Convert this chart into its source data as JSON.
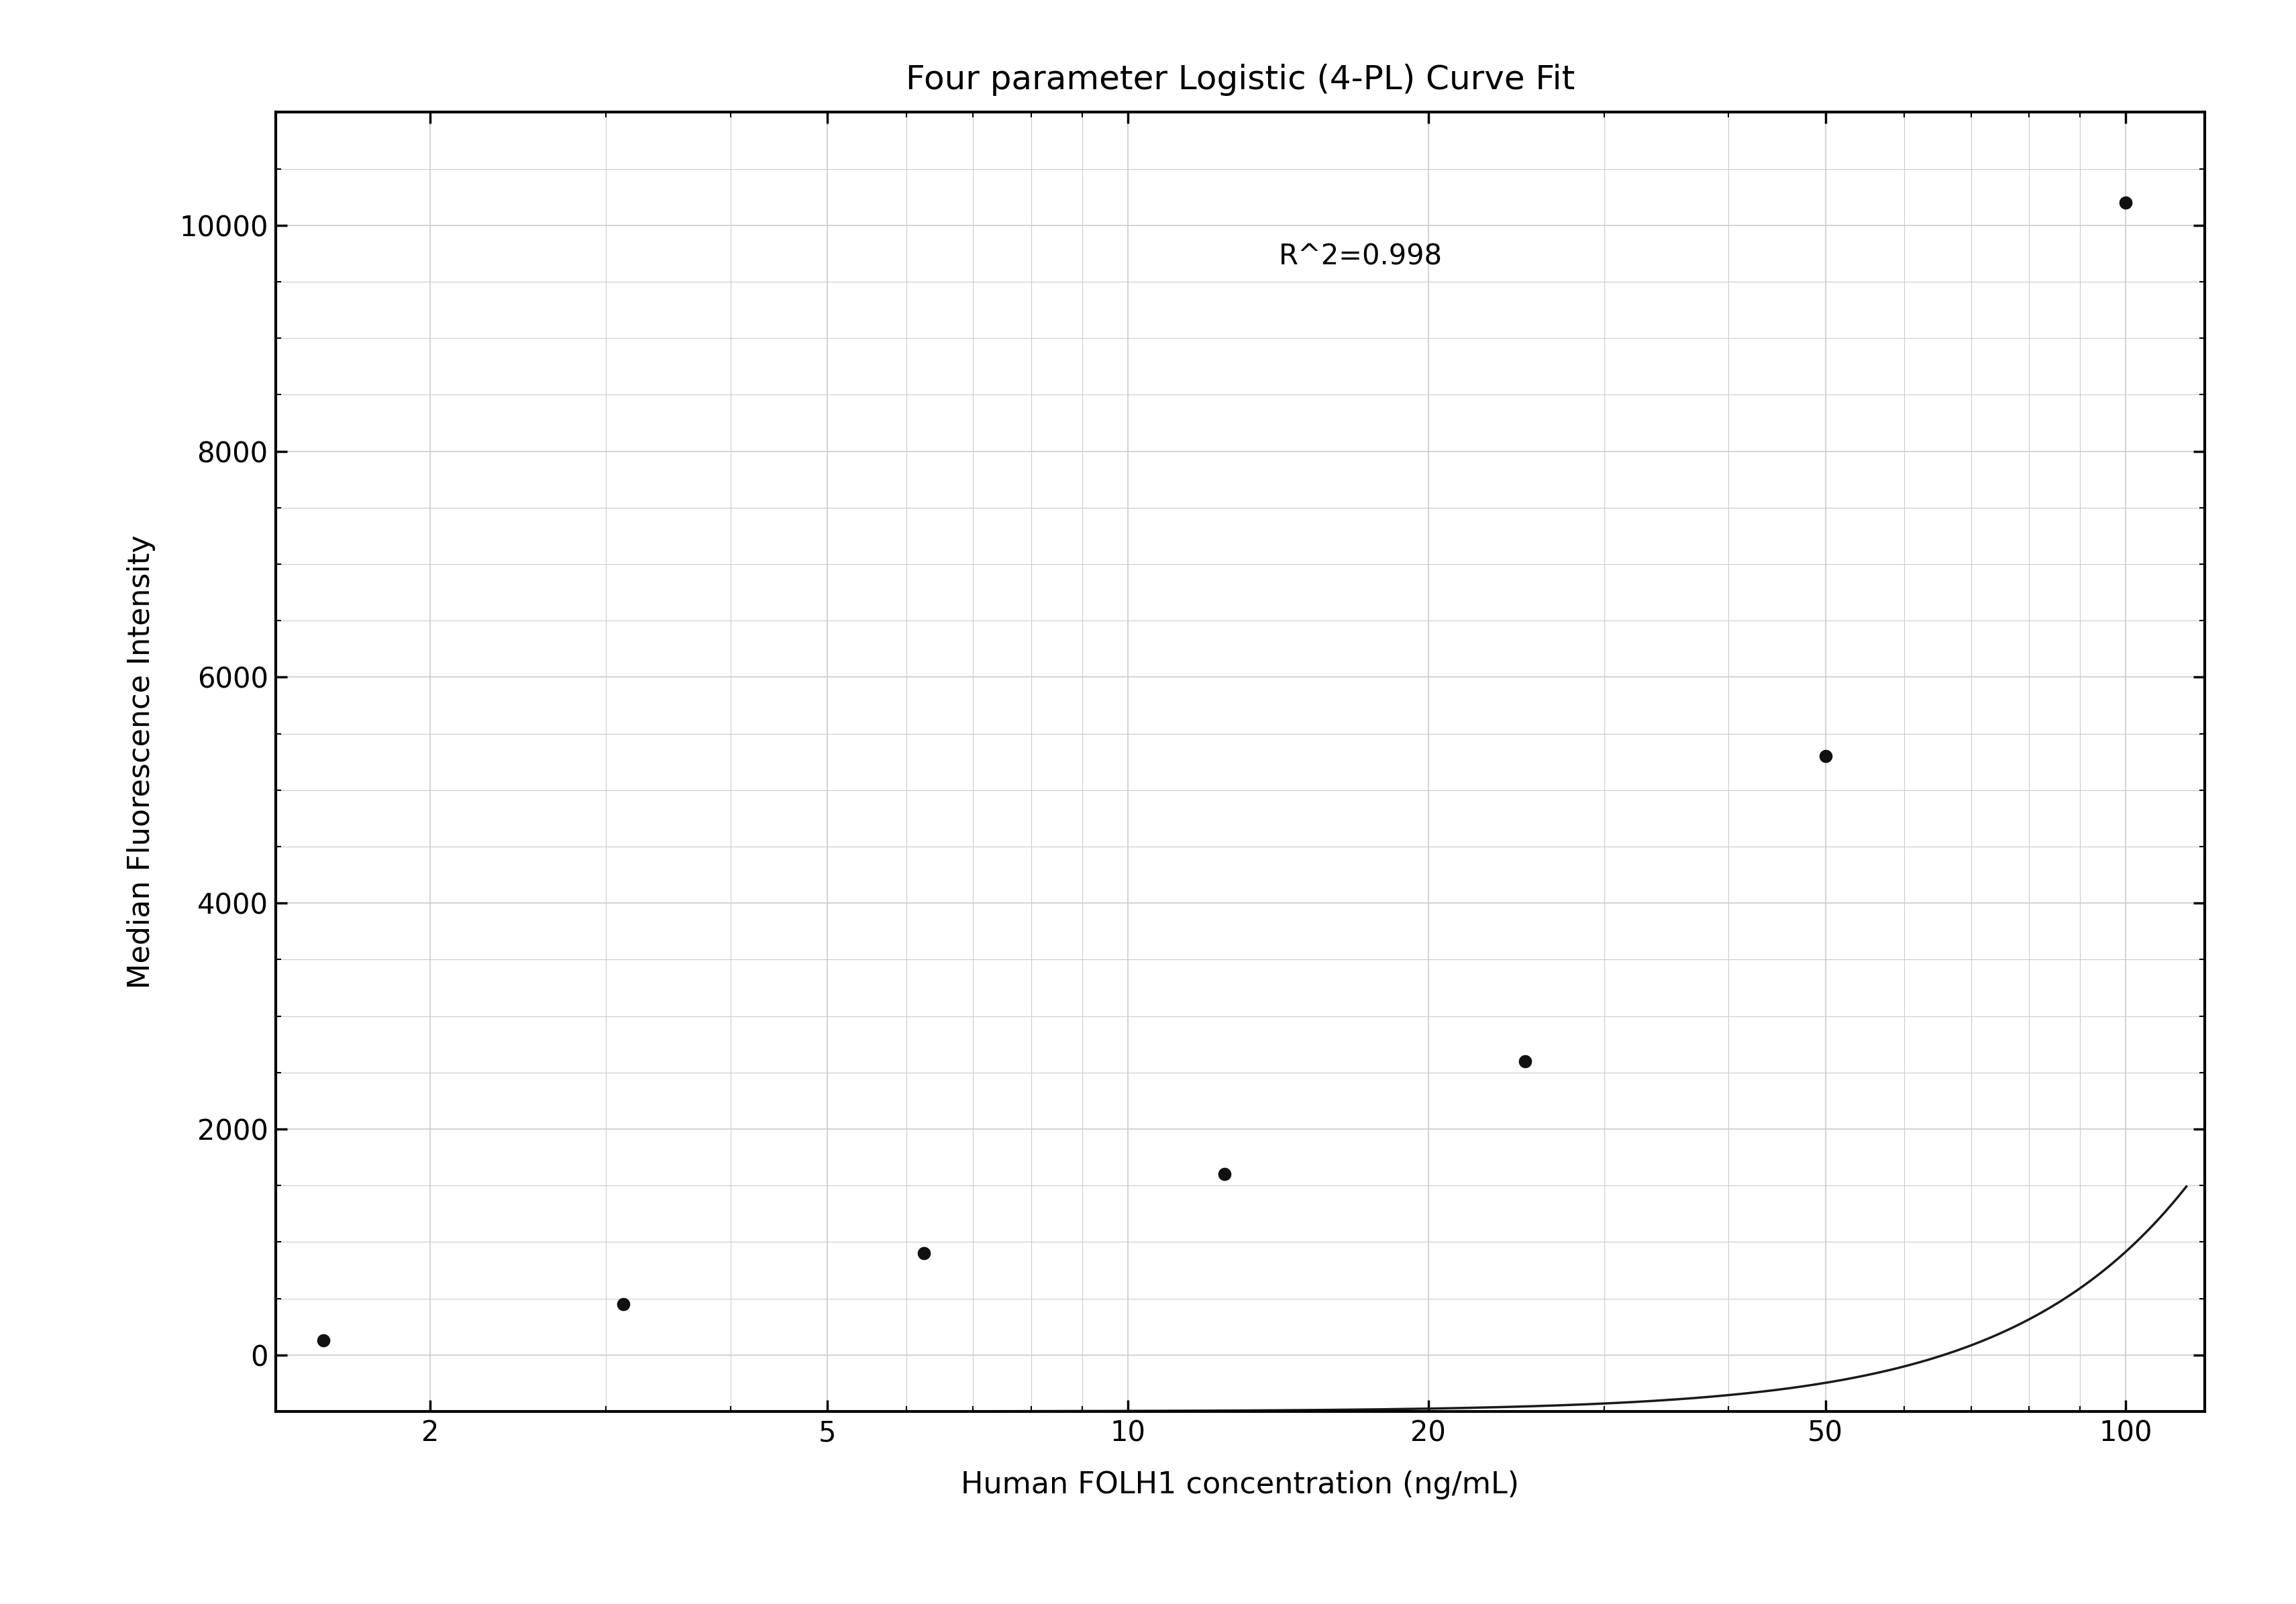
{
  "title": "Four parameter Logistic (4-PL) Curve Fit",
  "xlabel": "Human FOLH1 concentration (ng/mL)",
  "ylabel": "Median Fluorescence Intensity",
  "annotation": "R^2=0.998",
  "data_x": [
    1.563,
    3.125,
    6.25,
    12.5,
    25,
    50,
    100
  ],
  "data_y": [
    130,
    450,
    900,
    1600,
    2600,
    5300,
    10200
  ],
  "xscale": "log",
  "xlim": [
    1.4,
    120
  ],
  "ylim": [
    -500,
    11000
  ],
  "xticks": [
    2,
    5,
    10,
    20,
    50,
    100
  ],
  "yticks": [
    0,
    2000,
    4000,
    6000,
    8000,
    10000
  ],
  "grid_color": "#cccccc",
  "line_color": "#1a1a1a",
  "dot_color": "#111111",
  "bg_color": "#ffffff",
  "title_fontsize": 36,
  "label_fontsize": 32,
  "tick_fontsize": 30,
  "annot_fontsize": 30
}
